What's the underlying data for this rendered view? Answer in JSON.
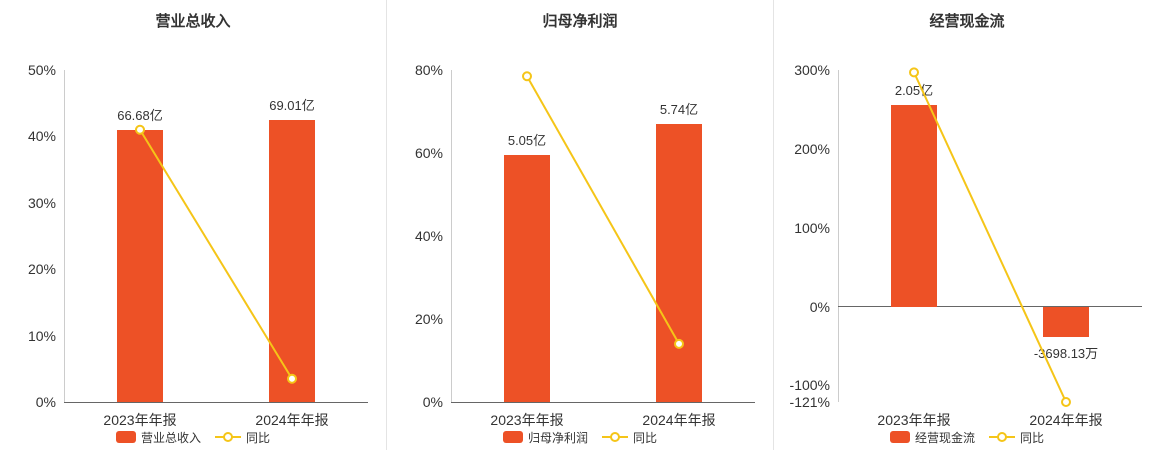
{
  "colors": {
    "background": "#ffffff",
    "bar": "#ed5126",
    "line": "#f5c518",
    "marker_fill": "#ffffff",
    "axis_line": "#cccccc",
    "zero_line": "#666666",
    "text": "#333333",
    "divider": "#e4e4e4"
  },
  "chart_data": [
    {
      "type": "bar",
      "title": "营业总收入",
      "categories": [
        "2023年年报",
        "2024年年报"
      ],
      "ylim": [
        0,
        50
      ],
      "grid": false,
      "legend_position": "bottom",
      "y_ticks": [
        {
          "value": 0,
          "label": "0%"
        },
        {
          "value": 10,
          "label": "10%"
        },
        {
          "value": 20,
          "label": "20%"
        },
        {
          "value": 30,
          "label": "30%"
        },
        {
          "value": 40,
          "label": "40%"
        },
        {
          "value": 50,
          "label": "50%"
        }
      ],
      "bar_series": {
        "name": "营业总收入",
        "value_labels": [
          "66.68亿",
          "69.01亿"
        ],
        "plotted_axis_values": [
          41,
          42.5
        ]
      },
      "line_series": {
        "name": "同比",
        "plotted_axis_values": [
          41,
          3.5
        ]
      }
    },
    {
      "type": "bar",
      "title": "归母净利润",
      "categories": [
        "2023年年报",
        "2024年年报"
      ],
      "ylim": [
        0,
        80
      ],
      "grid": false,
      "legend_position": "bottom",
      "y_ticks": [
        {
          "value": 0,
          "label": "0%"
        },
        {
          "value": 20,
          "label": "20%"
        },
        {
          "value": 40,
          "label": "40%"
        },
        {
          "value": 60,
          "label": "60%"
        },
        {
          "value": 80,
          "label": "80%"
        }
      ],
      "bar_series": {
        "name": "归母净利润",
        "value_labels": [
          "5.05亿",
          "5.74亿"
        ],
        "plotted_axis_values": [
          59.5,
          67
        ]
      },
      "line_series": {
        "name": "同比",
        "plotted_axis_values": [
          78.5,
          14
        ]
      }
    },
    {
      "type": "bar",
      "title": "经营现金流",
      "categories": [
        "2023年年报",
        "2024年年报"
      ],
      "ylim": [
        -121,
        300
      ],
      "grid": false,
      "legend_position": "bottom",
      "y_ticks": [
        {
          "value": 300,
          "label": "300%"
        },
        {
          "value": 200,
          "label": "200%"
        },
        {
          "value": 100,
          "label": "100%"
        },
        {
          "value": 0,
          "label": "0%"
        },
        {
          "value": -100,
          "label": "-100%"
        },
        {
          "value": -121,
          "label": "-121%"
        }
      ],
      "bar_series": {
        "name": "经营现金流",
        "value_labels": [
          "2.05亿",
          "-3698.13万"
        ],
        "plotted_axis_values": [
          255,
          -38
        ]
      },
      "line_series": {
        "name": "同比",
        "plotted_axis_values": [
          297,
          -121
        ]
      }
    }
  ]
}
